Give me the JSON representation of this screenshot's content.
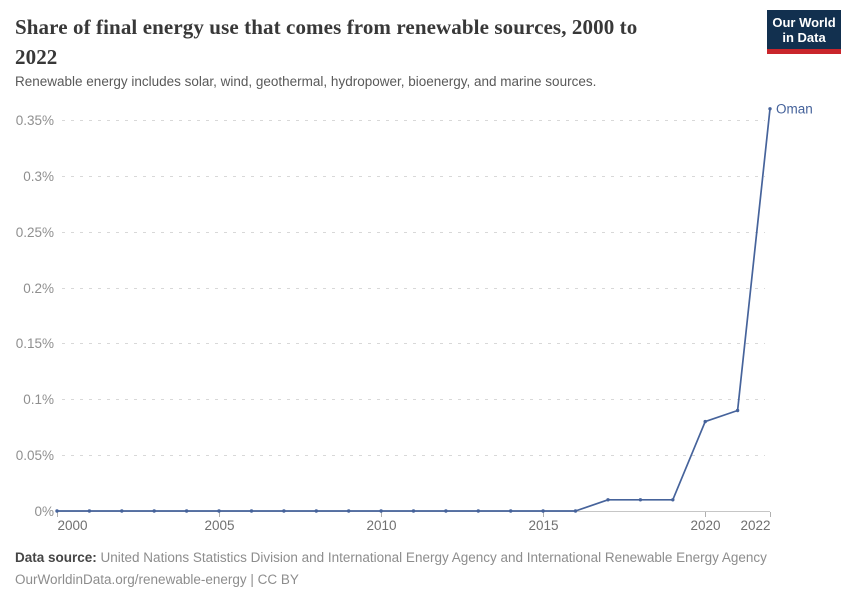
{
  "header": {
    "title": "Share of final energy use that comes from renewable sources, 2000 to 2022",
    "subtitle": "Renewable energy includes solar, wind, geothermal, hydropower, bioenergy, and marine sources.",
    "logo": {
      "line1": "Our World",
      "line2": "in Data",
      "bg_color": "#12304f",
      "bar_color": "#c9252b",
      "text_color": "#ffffff"
    }
  },
  "chart_data": {
    "type": "line",
    "title": "Share of final energy use that comes from renewable sources, 2000 to 2022",
    "x": [
      2000,
      2001,
      2002,
      2003,
      2004,
      2005,
      2006,
      2007,
      2008,
      2009,
      2010,
      2011,
      2012,
      2013,
      2014,
      2015,
      2016,
      2017,
      2018,
      2019,
      2020,
      2021,
      2022
    ],
    "series": [
      {
        "name": "Oman",
        "color": "#46639b",
        "values": [
          0,
          0,
          0,
          0,
          0,
          0,
          0,
          0,
          0,
          0,
          0,
          0,
          0,
          0,
          0,
          0,
          0,
          0.01,
          0.01,
          0.01,
          0.08,
          0.09,
          0.36
        ]
      }
    ],
    "unit": "%",
    "xlabel": "",
    "ylabel": "",
    "xlim": [
      2000,
      2022
    ],
    "ylim": [
      0,
      0.35
    ],
    "x_ticks": [
      2000,
      2005,
      2010,
      2015,
      2020,
      2022
    ],
    "y_ticks": [
      0,
      0.05,
      0.1,
      0.15,
      0.2,
      0.25,
      0.3,
      0.35
    ],
    "y_tick_labels": [
      "0%",
      "0.05%",
      "0.1%",
      "0.15%",
      "0.2%",
      "0.25%",
      "0.3%",
      "0.35%"
    ],
    "grid": "horizontal dashed",
    "legend_position": "end-of-line label",
    "colors": {
      "grid": "#d8d8d8",
      "axis": "#c6c6c6",
      "tick": "#b0b0b0",
      "x_tick_label": "#707070",
      "y_tick_label": "#8f8f8f"
    }
  },
  "footer": {
    "source_label": "Data source:",
    "source_text": " United Nations Statistics Division and International Energy Agency and International Renewable Energy Agency",
    "license_text": "OurWorldinData.org/renewable-energy | CC BY"
  }
}
